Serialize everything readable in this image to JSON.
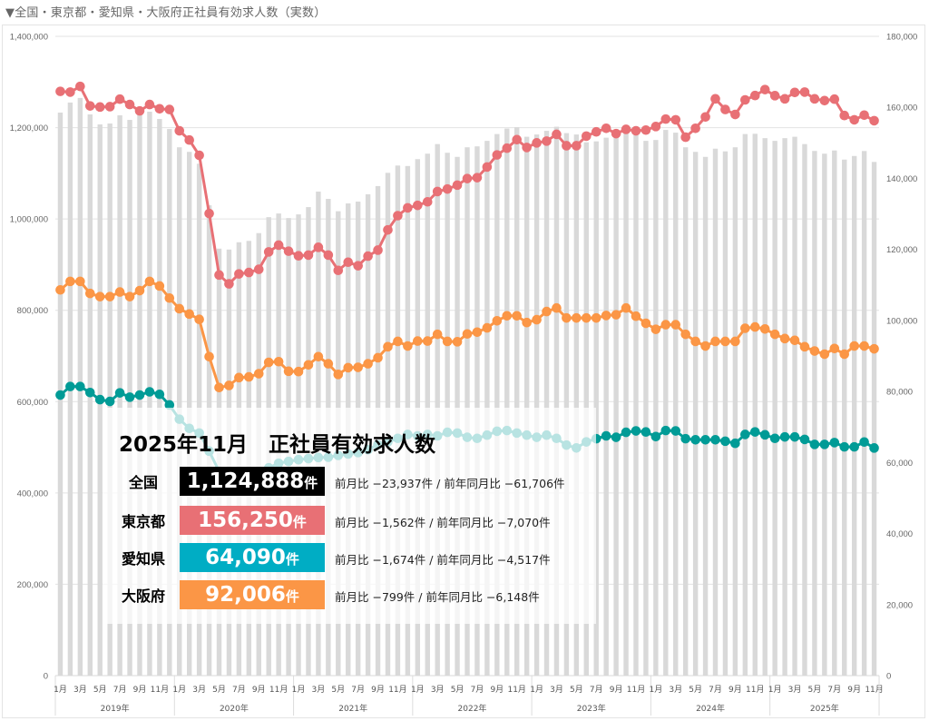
{
  "header": {
    "title": "▼全国・東京都・愛知県・大阪府正社員有効求人数（実数）"
  },
  "summary": {
    "title": "2025年11月　正社員有効求人数",
    "unit": "件",
    "rows": [
      {
        "label": "全国",
        "value": "1,124,888",
        "color": "#000000",
        "cmp": "前月比 −23,937件 / 前年同月比 −61,706件"
      },
      {
        "label": "東京都",
        "value": "156,250",
        "color": "#e87075",
        "cmp": "前月比 −1,562件 / 前年同月比 −7,070件"
      },
      {
        "label": "愛知県",
        "value": "64,090",
        "color": "#00adc4",
        "cmp": "前月比 −1,674件 / 前年同月比 −4,517件"
      },
      {
        "label": "大阪府",
        "value": "92,006",
        "color": "#fb9646",
        "cmp": "前月比 −799件 / 前年同月比 −6,148件"
      }
    ]
  },
  "chart_data": {
    "type": "bar+line",
    "grid": true,
    "left_axis": {
      "ylim": [
        0,
        1400000
      ],
      "ticks": [
        "0",
        "200,000",
        "400,000",
        "600,000",
        "800,000",
        "1,000,000",
        "1,200,000",
        "1,400,000"
      ]
    },
    "right_axis": {
      "ylim": [
        0,
        180000
      ],
      "ticks": [
        "0",
        "20,000",
        "40,000",
        "60,000",
        "80,000",
        "100,000",
        "120,000",
        "140,000",
        "160,000",
        "180,000"
      ]
    },
    "years": [
      "2019年",
      "2020年",
      "2021年",
      "2022年",
      "2023年",
      "2024年",
      "2025年"
    ],
    "month_ticks": [
      "1月",
      "3月",
      "5月",
      "7月",
      "9月",
      "11月"
    ],
    "x_start": "2019-01",
    "x_end": "2025-11",
    "series": [
      {
        "axis": "left",
        "kind": "bar",
        "color": "#d9d9d9",
        "values": [
          1233000,
          1255000,
          1265000,
          1229000,
          1207000,
          1209000,
          1227000,
          1217000,
          1231000,
          1235000,
          1219000,
          1197000,
          1157000,
          1147000,
          1121000,
          1030000,
          935000,
          933000,
          949000,
          952000,
          969000,
          1004000,
          1012000,
          1002000,
          1010000,
          1026000,
          1060000,
          1044000,
          1017000,
          1034000,
          1038000,
          1054000,
          1072000,
          1101000,
          1117000,
          1116000,
          1131000,
          1143000,
          1164000,
          1145000,
          1136000,
          1157000,
          1159000,
          1171000,
          1186000,
          1198000,
          1201000,
          1180000,
          1185000,
          1193000,
          1202000,
          1188000,
          1185000,
          1168000,
          1170000,
          1178000,
          1195000,
          1198000,
          1188000,
          1171000,
          1173000,
          1195000,
          1189000,
          1157000,
          1147000,
          1136000,
          1154000,
          1148000,
          1157000,
          1186000,
          1186594,
          1177000,
          1171000,
          1177000,
          1180000,
          1164000,
          1149000,
          1143000,
          1150000,
          1130000,
          1138000,
          1148825,
          1124888
        ]
      },
      {
        "axis": "right",
        "kind": "line",
        "color": "#e87075",
        "values": [
          164500,
          164300,
          165900,
          160400,
          160100,
          160200,
          162300,
          160800,
          159000,
          160800,
          159600,
          159400,
          153400,
          150800,
          146500,
          130100,
          112800,
          110300,
          113100,
          113500,
          114400,
          119300,
          121200,
          119500,
          118200,
          118400,
          120600,
          118400,
          114100,
          116400,
          115400,
          118100,
          119800,
          125500,
          129500,
          131700,
          132400,
          133400,
          136300,
          137000,
          138100,
          139950,
          140200,
          143200,
          146600,
          148500,
          150900,
          148700,
          150000,
          150500,
          152400,
          149200,
          149200,
          151900,
          153100,
          154100,
          152600,
          153800,
          153400,
          153600,
          154600,
          156700,
          156500,
          151600,
          154100,
          157300,
          162400,
          159400,
          158000,
          162100,
          163320,
          165000,
          163300,
          162400,
          164200,
          164300,
          162400,
          161900,
          162300,
          157700,
          156500,
          157812,
          156250
        ]
      },
      {
        "axis": "right",
        "kind": "line",
        "color": "#fb9646",
        "values": [
          108600,
          111000,
          111000,
          107600,
          106700,
          106700,
          108000,
          106700,
          108400,
          111000,
          109700,
          106300,
          103300,
          101800,
          100300,
          89800,
          81100,
          81700,
          83900,
          84100,
          85000,
          88200,
          88400,
          85700,
          85600,
          87500,
          89800,
          87800,
          84800,
          86700,
          86800,
          87800,
          89500,
          92600,
          94100,
          92800,
          94200,
          94200,
          96100,
          94100,
          94000,
          96200,
          96700,
          97900,
          99900,
          101300,
          101300,
          99400,
          100200,
          102500,
          103500,
          100700,
          100700,
          100700,
          100700,
          101400,
          101600,
          103500,
          101200,
          99200,
          97500,
          98800,
          98800,
          96100,
          94100,
          92800,
          94100,
          94100,
          94100,
          97800,
          98154,
          97600,
          96100,
          94900,
          94400,
          92600,
          91400,
          90500,
          92100,
          90500,
          92800,
          92805,
          92006
        ]
      },
      {
        "axis": "right",
        "kind": "line",
        "color": "#009b96",
        "values": [
          79000,
          81400,
          81400,
          79700,
          77700,
          77200,
          79600,
          78400,
          79000,
          79900,
          79200,
          76200,
          72200,
          69600,
          68300,
          63200,
          57500,
          55500,
          55000,
          55500,
          57000,
          58500,
          59800,
          60300,
          60800,
          61100,
          61400,
          61500,
          62000,
          62400,
          62800,
          63600,
          65000,
          65800,
          66800,
          67900,
          67500,
          67900,
          67500,
          68500,
          68300,
          67100,
          66800,
          67700,
          68800,
          69000,
          68300,
          67700,
          67100,
          67700,
          66800,
          64900,
          64100,
          65800,
          66700,
          67500,
          67100,
          68500,
          68900,
          68600,
          67300,
          69000,
          68900,
          66700,
          66400,
          66400,
          66400,
          66000,
          65400,
          67900,
          68607,
          67800,
          66800,
          67200,
          67200,
          66500,
          65100,
          65100,
          65600,
          64400,
          64400,
          65764,
          64090
        ]
      }
    ]
  }
}
